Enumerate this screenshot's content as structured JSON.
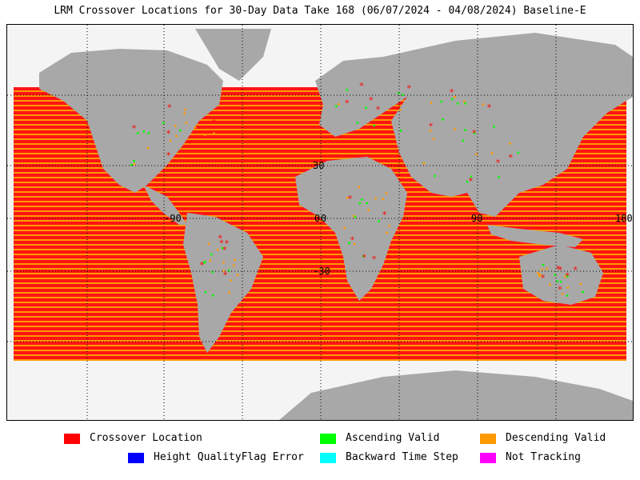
{
  "title": "LRM Crossover Locations for 30-Day Data Take 168 (06/07/2024 - 04/08/2024) Baseline-E",
  "map": {
    "latitude_labels": [
      "30",
      "0",
      "-30"
    ],
    "longitude_labels": [
      "-90",
      "0",
      "90",
      "180"
    ],
    "colors": {
      "ocean": "#f4f4f4",
      "land": "#a8a8a8",
      "crossover": "#ff0000",
      "ascending": "#00ff00",
      "descending": "#ff9900"
    }
  },
  "legend": {
    "items": [
      {
        "label": "Crossover Location",
        "color": "#ff0000"
      },
      {
        "label": "Ascending Valid",
        "color": "#00ff00"
      },
      {
        "label": "Descending Valid",
        "color": "#ff9900"
      },
      {
        "label": "Height QualityFlag Error",
        "color": "#0000ff"
      },
      {
        "label": "Backward Time Step",
        "color": "#00ffff"
      },
      {
        "label": "Not Tracking",
        "color": "#ff00ff"
      }
    ]
  }
}
